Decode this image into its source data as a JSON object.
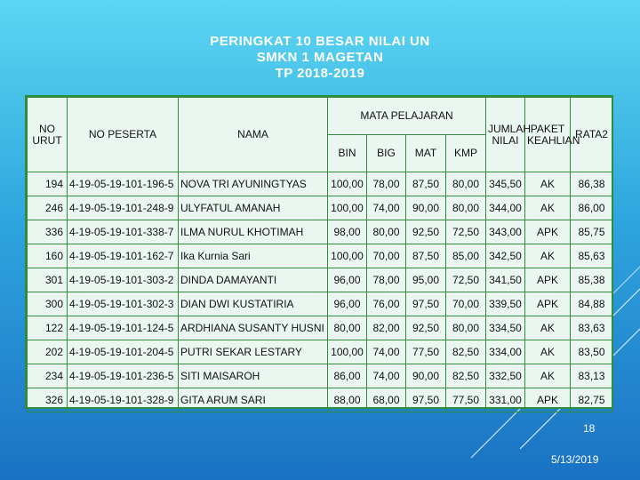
{
  "slide": {
    "title_line1": "PERINGKAT 10 BESAR NILAI UN",
    "title_line2": "SMKN 1 MAGETAN",
    "title_line3": "TP 2018-2019",
    "page_number": "18",
    "date": "5/13/2019"
  },
  "table": {
    "headers": {
      "no_urut": "NO URUT",
      "no_peserta": "NO PESERTA",
      "nama": "NAMA",
      "mata_pelajaran": "MATA PELAJARAN",
      "jumlah": "JUMLAH NILAI",
      "paket": "PAKET KEAHLIAN",
      "rata": "RATA2",
      "bin": "BIN",
      "big": "BIG",
      "mat": "MAT",
      "kmp": "KMP"
    },
    "rows": [
      {
        "no": "194",
        "peserta": "4-19-05-19-101-196-5",
        "nama": "NOVA TRI AYUNINGTYAS",
        "bin": "100,00",
        "big": "78,00",
        "mat": "87,50",
        "kmp": "80,00",
        "jumlah": "345,50",
        "paket": "AK",
        "rata": "86,38"
      },
      {
        "no": "246",
        "peserta": "4-19-05-19-101-248-9",
        "nama": "ULYFATUL AMANAH",
        "bin": "100,00",
        "big": "74,00",
        "mat": "90,00",
        "kmp": "80,00",
        "jumlah": "344,00",
        "paket": "AK",
        "rata": "86,00"
      },
      {
        "no": "336",
        "peserta": "4-19-05-19-101-338-7",
        "nama": "ILMA NURUL KHOTIMAH",
        "bin": "98,00",
        "big": "80,00",
        "mat": "92,50",
        "kmp": "72,50",
        "jumlah": "343,00",
        "paket": "APK",
        "rata": "85,75"
      },
      {
        "no": "160",
        "peserta": "4-19-05-19-101-162-7",
        "nama": "Ika Kurnia Sari",
        "bin": "100,00",
        "big": "70,00",
        "mat": "87,50",
        "kmp": "85,00",
        "jumlah": "342,50",
        "paket": "AK",
        "rata": "85,63"
      },
      {
        "no": "301",
        "peserta": "4-19-05-19-101-303-2",
        "nama": "DINDA DAMAYANTI",
        "bin": "96,00",
        "big": "78,00",
        "mat": "95,00",
        "kmp": "72,50",
        "jumlah": "341,50",
        "paket": "APK",
        "rata": "85,38"
      },
      {
        "no": "300",
        "peserta": "4-19-05-19-101-302-3",
        "nama": "DIAN DWI KUSTATIRIA",
        "bin": "96,00",
        "big": "76,00",
        "mat": "97,50",
        "kmp": "70,00",
        "jumlah": "339,50",
        "paket": "APK",
        "rata": "84,88"
      },
      {
        "no": "122",
        "peserta": "4-19-05-19-101-124-5",
        "nama": "ARDHIANA SUSANTY HUSNI",
        "bin": "80,00",
        "big": "82,00",
        "mat": "92,50",
        "kmp": "80,00",
        "jumlah": "334,50",
        "paket": "AK",
        "rata": "83,63"
      },
      {
        "no": "202",
        "peserta": "4-19-05-19-101-204-5",
        "nama": "PUTRI SEKAR LESTARY",
        "bin": "100,00",
        "big": "74,00",
        "mat": "77,50",
        "kmp": "82,50",
        "jumlah": "334,00",
        "paket": "AK",
        "rata": "83,50"
      },
      {
        "no": "234",
        "peserta": "4-19-05-19-101-236-5",
        "nama": "SITI MAISAROH",
        "bin": "86,00",
        "big": "74,00",
        "mat": "90,00",
        "kmp": "82,50",
        "jumlah": "332,50",
        "paket": "AK",
        "rata": "83,13"
      },
      {
        "no": "326",
        "peserta": "4-19-05-19-101-328-9",
        "nama": "GITA ARUM SARI",
        "bin": "88,00",
        "big": "68,00",
        "mat": "97,50",
        "kmp": "77,50",
        "jumlah": "331,00",
        "paket": "APK",
        "rata": "82,75"
      }
    ]
  }
}
